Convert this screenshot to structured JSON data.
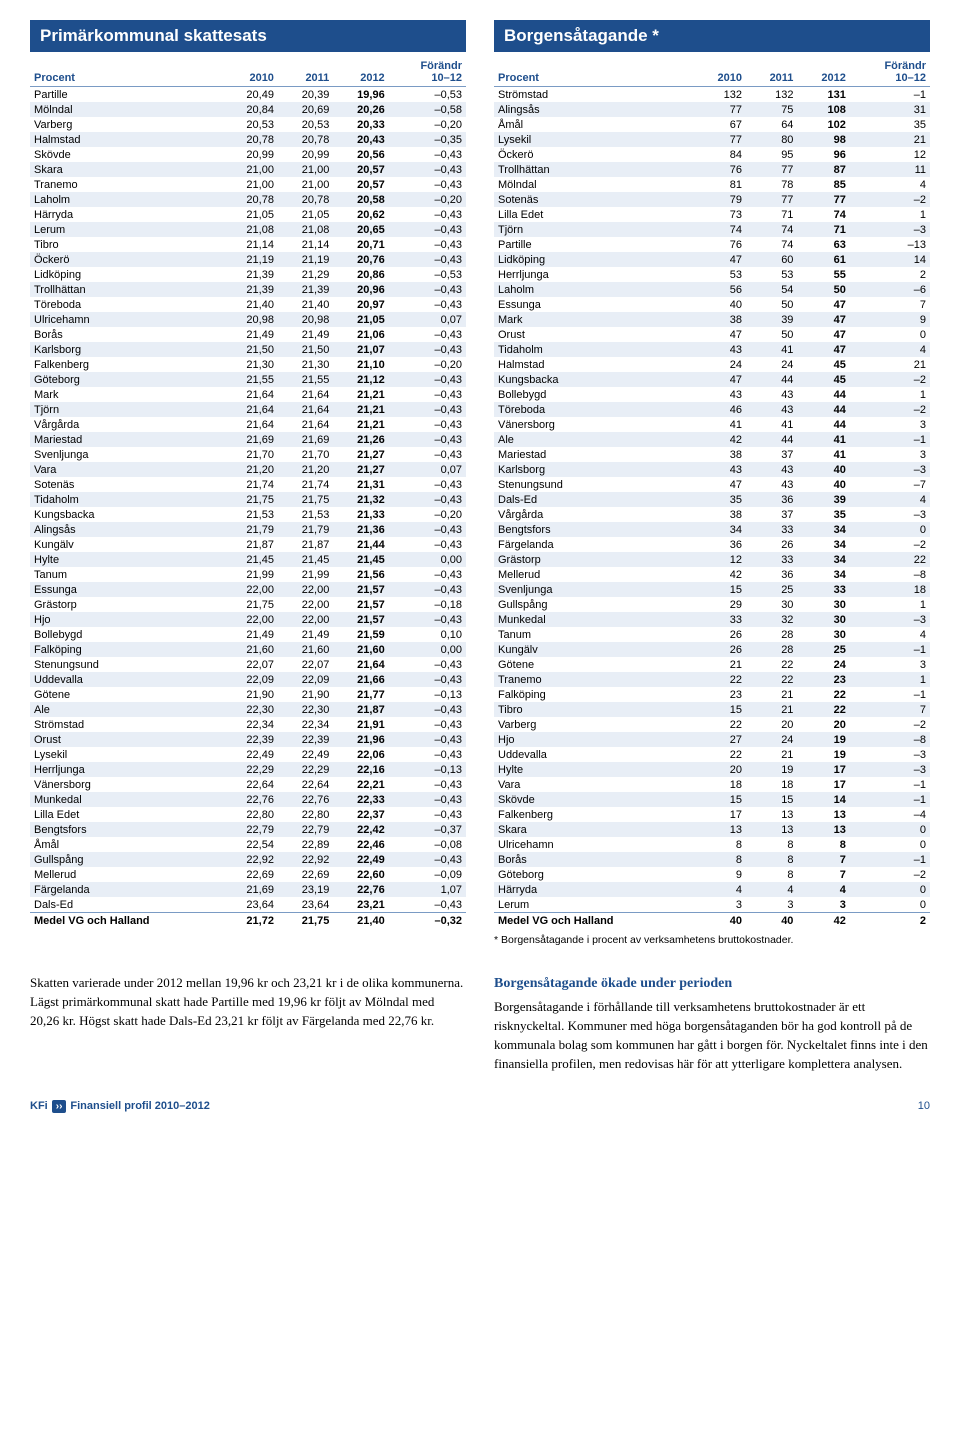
{
  "left": {
    "title": "Primärkommunal skattesats",
    "columns": [
      "Procent",
      "2010",
      "2011",
      "2012",
      "Förändr"
    ],
    "subheader": "10–12",
    "rows": [
      [
        "Partille",
        "20,49",
        "20,39",
        "19,96",
        "–0,53"
      ],
      [
        "Mölndal",
        "20,84",
        "20,69",
        "20,26",
        "–0,58"
      ],
      [
        "Varberg",
        "20,53",
        "20,53",
        "20,33",
        "–0,20"
      ],
      [
        "Halmstad",
        "20,78",
        "20,78",
        "20,43",
        "–0,35"
      ],
      [
        "Skövde",
        "20,99",
        "20,99",
        "20,56",
        "–0,43"
      ],
      [
        "Skara",
        "21,00",
        "21,00",
        "20,57",
        "–0,43"
      ],
      [
        "Tranemo",
        "21,00",
        "21,00",
        "20,57",
        "–0,43"
      ],
      [
        "Laholm",
        "20,78",
        "20,78",
        "20,58",
        "–0,20"
      ],
      [
        "Härryda",
        "21,05",
        "21,05",
        "20,62",
        "–0,43"
      ],
      [
        "Lerum",
        "21,08",
        "21,08",
        "20,65",
        "–0,43"
      ],
      [
        "Tibro",
        "21,14",
        "21,14",
        "20,71",
        "–0,43"
      ],
      [
        "Öckerö",
        "21,19",
        "21,19",
        "20,76",
        "–0,43"
      ],
      [
        "Lidköping",
        "21,39",
        "21,29",
        "20,86",
        "–0,53"
      ],
      [
        "Trollhättan",
        "21,39",
        "21,39",
        "20,96",
        "–0,43"
      ],
      [
        "Töreboda",
        "21,40",
        "21,40",
        "20,97",
        "–0,43"
      ],
      [
        "Ulricehamn",
        "20,98",
        "20,98",
        "21,05",
        "0,07"
      ],
      [
        "Borås",
        "21,49",
        "21,49",
        "21,06",
        "–0,43"
      ],
      [
        "Karlsborg",
        "21,50",
        "21,50",
        "21,07",
        "–0,43"
      ],
      [
        "Falkenberg",
        "21,30",
        "21,30",
        "21,10",
        "–0,20"
      ],
      [
        "Göteborg",
        "21,55",
        "21,55",
        "21,12",
        "–0,43"
      ],
      [
        "Mark",
        "21,64",
        "21,64",
        "21,21",
        "–0,43"
      ],
      [
        "Tjörn",
        "21,64",
        "21,64",
        "21,21",
        "–0,43"
      ],
      [
        "Vårgårda",
        "21,64",
        "21,64",
        "21,21",
        "–0,43"
      ],
      [
        "Mariestad",
        "21,69",
        "21,69",
        "21,26",
        "–0,43"
      ],
      [
        "Svenljunga",
        "21,70",
        "21,70",
        "21,27",
        "–0,43"
      ],
      [
        "Vara",
        "21,20",
        "21,20",
        "21,27",
        "0,07"
      ],
      [
        "Sotenäs",
        "21,74",
        "21,74",
        "21,31",
        "–0,43"
      ],
      [
        "Tidaholm",
        "21,75",
        "21,75",
        "21,32",
        "–0,43"
      ],
      [
        "Kungsbacka",
        "21,53",
        "21,53",
        "21,33",
        "–0,20"
      ],
      [
        "Alingsås",
        "21,79",
        "21,79",
        "21,36",
        "–0,43"
      ],
      [
        "Kungälv",
        "21,87",
        "21,87",
        "21,44",
        "–0,43"
      ],
      [
        "Hylte",
        "21,45",
        "21,45",
        "21,45",
        "0,00"
      ],
      [
        "Tanum",
        "21,99",
        "21,99",
        "21,56",
        "–0,43"
      ],
      [
        "Essunga",
        "22,00",
        "22,00",
        "21,57",
        "–0,43"
      ],
      [
        "Grästorp",
        "21,75",
        "22,00",
        "21,57",
        "–0,18"
      ],
      [
        "Hjo",
        "22,00",
        "22,00",
        "21,57",
        "–0,43"
      ],
      [
        "Bollebygd",
        "21,49",
        "21,49",
        "21,59",
        "0,10"
      ],
      [
        "Falköping",
        "21,60",
        "21,60",
        "21,60",
        "0,00"
      ],
      [
        "Stenungsund",
        "22,07",
        "22,07",
        "21,64",
        "–0,43"
      ],
      [
        "Uddevalla",
        "22,09",
        "22,09",
        "21,66",
        "–0,43"
      ],
      [
        "Götene",
        "21,90",
        "21,90",
        "21,77",
        "–0,13"
      ],
      [
        "Ale",
        "22,30",
        "22,30",
        "21,87",
        "–0,43"
      ],
      [
        "Strömstad",
        "22,34",
        "22,34",
        "21,91",
        "–0,43"
      ],
      [
        "Orust",
        "22,39",
        "22,39",
        "21,96",
        "–0,43"
      ],
      [
        "Lysekil",
        "22,49",
        "22,49",
        "22,06",
        "–0,43"
      ],
      [
        "Herrljunga",
        "22,29",
        "22,29",
        "22,16",
        "–0,13"
      ],
      [
        "Vänersborg",
        "22,64",
        "22,64",
        "22,21",
        "–0,43"
      ],
      [
        "Munkedal",
        "22,76",
        "22,76",
        "22,33",
        "–0,43"
      ],
      [
        "Lilla Edet",
        "22,80",
        "22,80",
        "22,37",
        "–0,43"
      ],
      [
        "Bengtsfors",
        "22,79",
        "22,79",
        "22,42",
        "–0,37"
      ],
      [
        "Åmål",
        "22,54",
        "22,89",
        "22,46",
        "–0,08"
      ],
      [
        "Gullspång",
        "22,92",
        "22,92",
        "22,49",
        "–0,43"
      ],
      [
        "Mellerud",
        "22,69",
        "22,69",
        "22,60",
        "–0,09"
      ],
      [
        "Färgelanda",
        "21,69",
        "23,19",
        "22,76",
        "1,07"
      ],
      [
        "Dals-Ed",
        "23,64",
        "23,64",
        "23,21",
        "–0,43"
      ]
    ],
    "total": [
      "Medel VG och Halland",
      "21,72",
      "21,75",
      "21,40",
      "–0,32"
    ]
  },
  "right": {
    "title": "Borgensåtagande *",
    "columns": [
      "Procent",
      "2010",
      "2011",
      "2012",
      "Förändr"
    ],
    "subheader": "10–12",
    "rows": [
      [
        "Strömstad",
        "132",
        "132",
        "131",
        "–1"
      ],
      [
        "Alingsås",
        "77",
        "75",
        "108",
        "31"
      ],
      [
        "Åmål",
        "67",
        "64",
        "102",
        "35"
      ],
      [
        "Lysekil",
        "77",
        "80",
        "98",
        "21"
      ],
      [
        "Öckerö",
        "84",
        "95",
        "96",
        "12"
      ],
      [
        "Trollhättan",
        "76",
        "77",
        "87",
        "11"
      ],
      [
        "Mölndal",
        "81",
        "78",
        "85",
        "4"
      ],
      [
        "Sotenäs",
        "79",
        "77",
        "77",
        "–2"
      ],
      [
        "Lilla Edet",
        "73",
        "71",
        "74",
        "1"
      ],
      [
        "Tjörn",
        "74",
        "74",
        "71",
        "–3"
      ],
      [
        "Partille",
        "76",
        "74",
        "63",
        "–13"
      ],
      [
        "Lidköping",
        "47",
        "60",
        "61",
        "14"
      ],
      [
        "Herrljunga",
        "53",
        "53",
        "55",
        "2"
      ],
      [
        "Laholm",
        "56",
        "54",
        "50",
        "–6"
      ],
      [
        "Essunga",
        "40",
        "50",
        "47",
        "7"
      ],
      [
        "Mark",
        "38",
        "39",
        "47",
        "9"
      ],
      [
        "Orust",
        "47",
        "50",
        "47",
        "0"
      ],
      [
        "Tidaholm",
        "43",
        "41",
        "47",
        "4"
      ],
      [
        "Halmstad",
        "24",
        "24",
        "45",
        "21"
      ],
      [
        "Kungsbacka",
        "47",
        "44",
        "45",
        "–2"
      ],
      [
        "Bollebygd",
        "43",
        "43",
        "44",
        "1"
      ],
      [
        "Töreboda",
        "46",
        "43",
        "44",
        "–2"
      ],
      [
        "Vänersborg",
        "41",
        "41",
        "44",
        "3"
      ],
      [
        "Ale",
        "42",
        "44",
        "41",
        "–1"
      ],
      [
        "Mariestad",
        "38",
        "37",
        "41",
        "3"
      ],
      [
        "Karlsborg",
        "43",
        "43",
        "40",
        "–3"
      ],
      [
        "Stenungsund",
        "47",
        "43",
        "40",
        "–7"
      ],
      [
        "Dals-Ed",
        "35",
        "36",
        "39",
        "4"
      ],
      [
        "Vårgårda",
        "38",
        "37",
        "35",
        "–3"
      ],
      [
        "Bengtsfors",
        "34",
        "33",
        "34",
        "0"
      ],
      [
        "Färgelanda",
        "36",
        "26",
        "34",
        "–2"
      ],
      [
        "Grästorp",
        "12",
        "33",
        "34",
        "22"
      ],
      [
        "Mellerud",
        "42",
        "36",
        "34",
        "–8"
      ],
      [
        "Svenljunga",
        "15",
        "25",
        "33",
        "18"
      ],
      [
        "Gullspång",
        "29",
        "30",
        "30",
        "1"
      ],
      [
        "Munkedal",
        "33",
        "32",
        "30",
        "–3"
      ],
      [
        "Tanum",
        "26",
        "28",
        "30",
        "4"
      ],
      [
        "Kungälv",
        "26",
        "28",
        "25",
        "–1"
      ],
      [
        "Götene",
        "21",
        "22",
        "24",
        "3"
      ],
      [
        "Tranemo",
        "22",
        "22",
        "23",
        "1"
      ],
      [
        "Falköping",
        "23",
        "21",
        "22",
        "–1"
      ],
      [
        "Tibro",
        "15",
        "21",
        "22",
        "7"
      ],
      [
        "Varberg",
        "22",
        "20",
        "20",
        "–2"
      ],
      [
        "Hjo",
        "27",
        "24",
        "19",
        "–8"
      ],
      [
        "Uddevalla",
        "22",
        "21",
        "19",
        "–3"
      ],
      [
        "Hylte",
        "20",
        "19",
        "17",
        "–3"
      ],
      [
        "Vara",
        "18",
        "18",
        "17",
        "–1"
      ],
      [
        "Skövde",
        "15",
        "15",
        "14",
        "–1"
      ],
      [
        "Falkenberg",
        "17",
        "13",
        "13",
        "–4"
      ],
      [
        "Skara",
        "13",
        "13",
        "13",
        "0"
      ],
      [
        "Ulricehamn",
        "8",
        "8",
        "8",
        "0"
      ],
      [
        "Borås",
        "8",
        "8",
        "7",
        "–1"
      ],
      [
        "Göteborg",
        "9",
        "8",
        "7",
        "–2"
      ],
      [
        "Härryda",
        "4",
        "4",
        "4",
        "0"
      ],
      [
        "Lerum",
        "3",
        "3",
        "3",
        "0"
      ]
    ],
    "total": [
      "Medel VG och Halland",
      "40",
      "40",
      "42",
      "2"
    ],
    "footnote": "* Borgensåtagande i procent av verksamhetens bruttokostnader."
  },
  "bodyLeft": "Skatten varierade under 2012 mellan 19,96 kr och 23,21 kr i de olika kommunerna. Lägst primärkommunal skatt hade Partille med 19,96 kr följt av Mölndal med 20,26 kr. Högst skatt hade Dals-Ed 23,21 kr följt av Färgelanda med 22,76 kr.",
  "bodyRight": {
    "title": "Borgensåtagande ökade under perioden",
    "text": "Borgensåtagande i förhållande till verksamhetens bruttokostnader är ett risknyckeltal. Kommuner med höga borgensåtaganden bör ha god kontroll på de kommunala bolag som kommunen har gått i borgen för. Nyckeltalet finns inte i den finansiella profilen, men redovisas här för att ytterligare komplettera analysen."
  },
  "footer": {
    "brand": "KFi",
    "title": "Finansiell profil 2010–2012",
    "page": "10"
  }
}
